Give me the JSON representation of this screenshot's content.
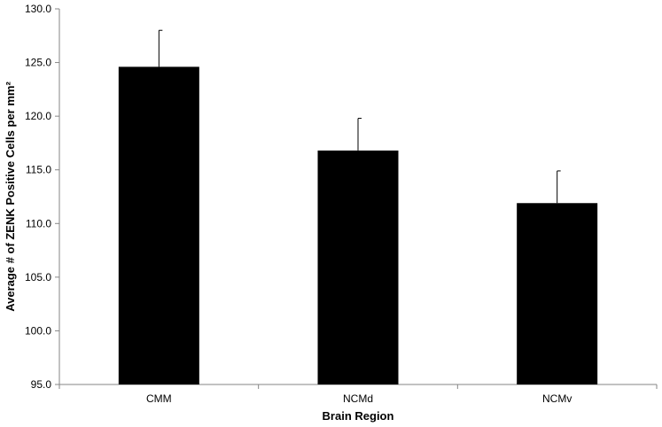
{
  "chart_data": {
    "type": "bar",
    "title": "",
    "xlabel": "Brain Region",
    "ylabel": "Average # of ZENK Positive Cells per mm²",
    "categories": [
      "CMM",
      "NCMd",
      "NCMv"
    ],
    "values": [
      124.6,
      116.8,
      111.9
    ],
    "error": [
      3.4,
      3.0,
      3.0
    ],
    "ylim": [
      95.0,
      130.0
    ],
    "yticks": [
      95.0,
      100.0,
      105.0,
      110.0,
      115.0,
      120.0,
      125.0,
      130.0
    ],
    "tick_format_decimals": 1,
    "grid": false,
    "legend": "none",
    "bar_color": "#000000"
  }
}
